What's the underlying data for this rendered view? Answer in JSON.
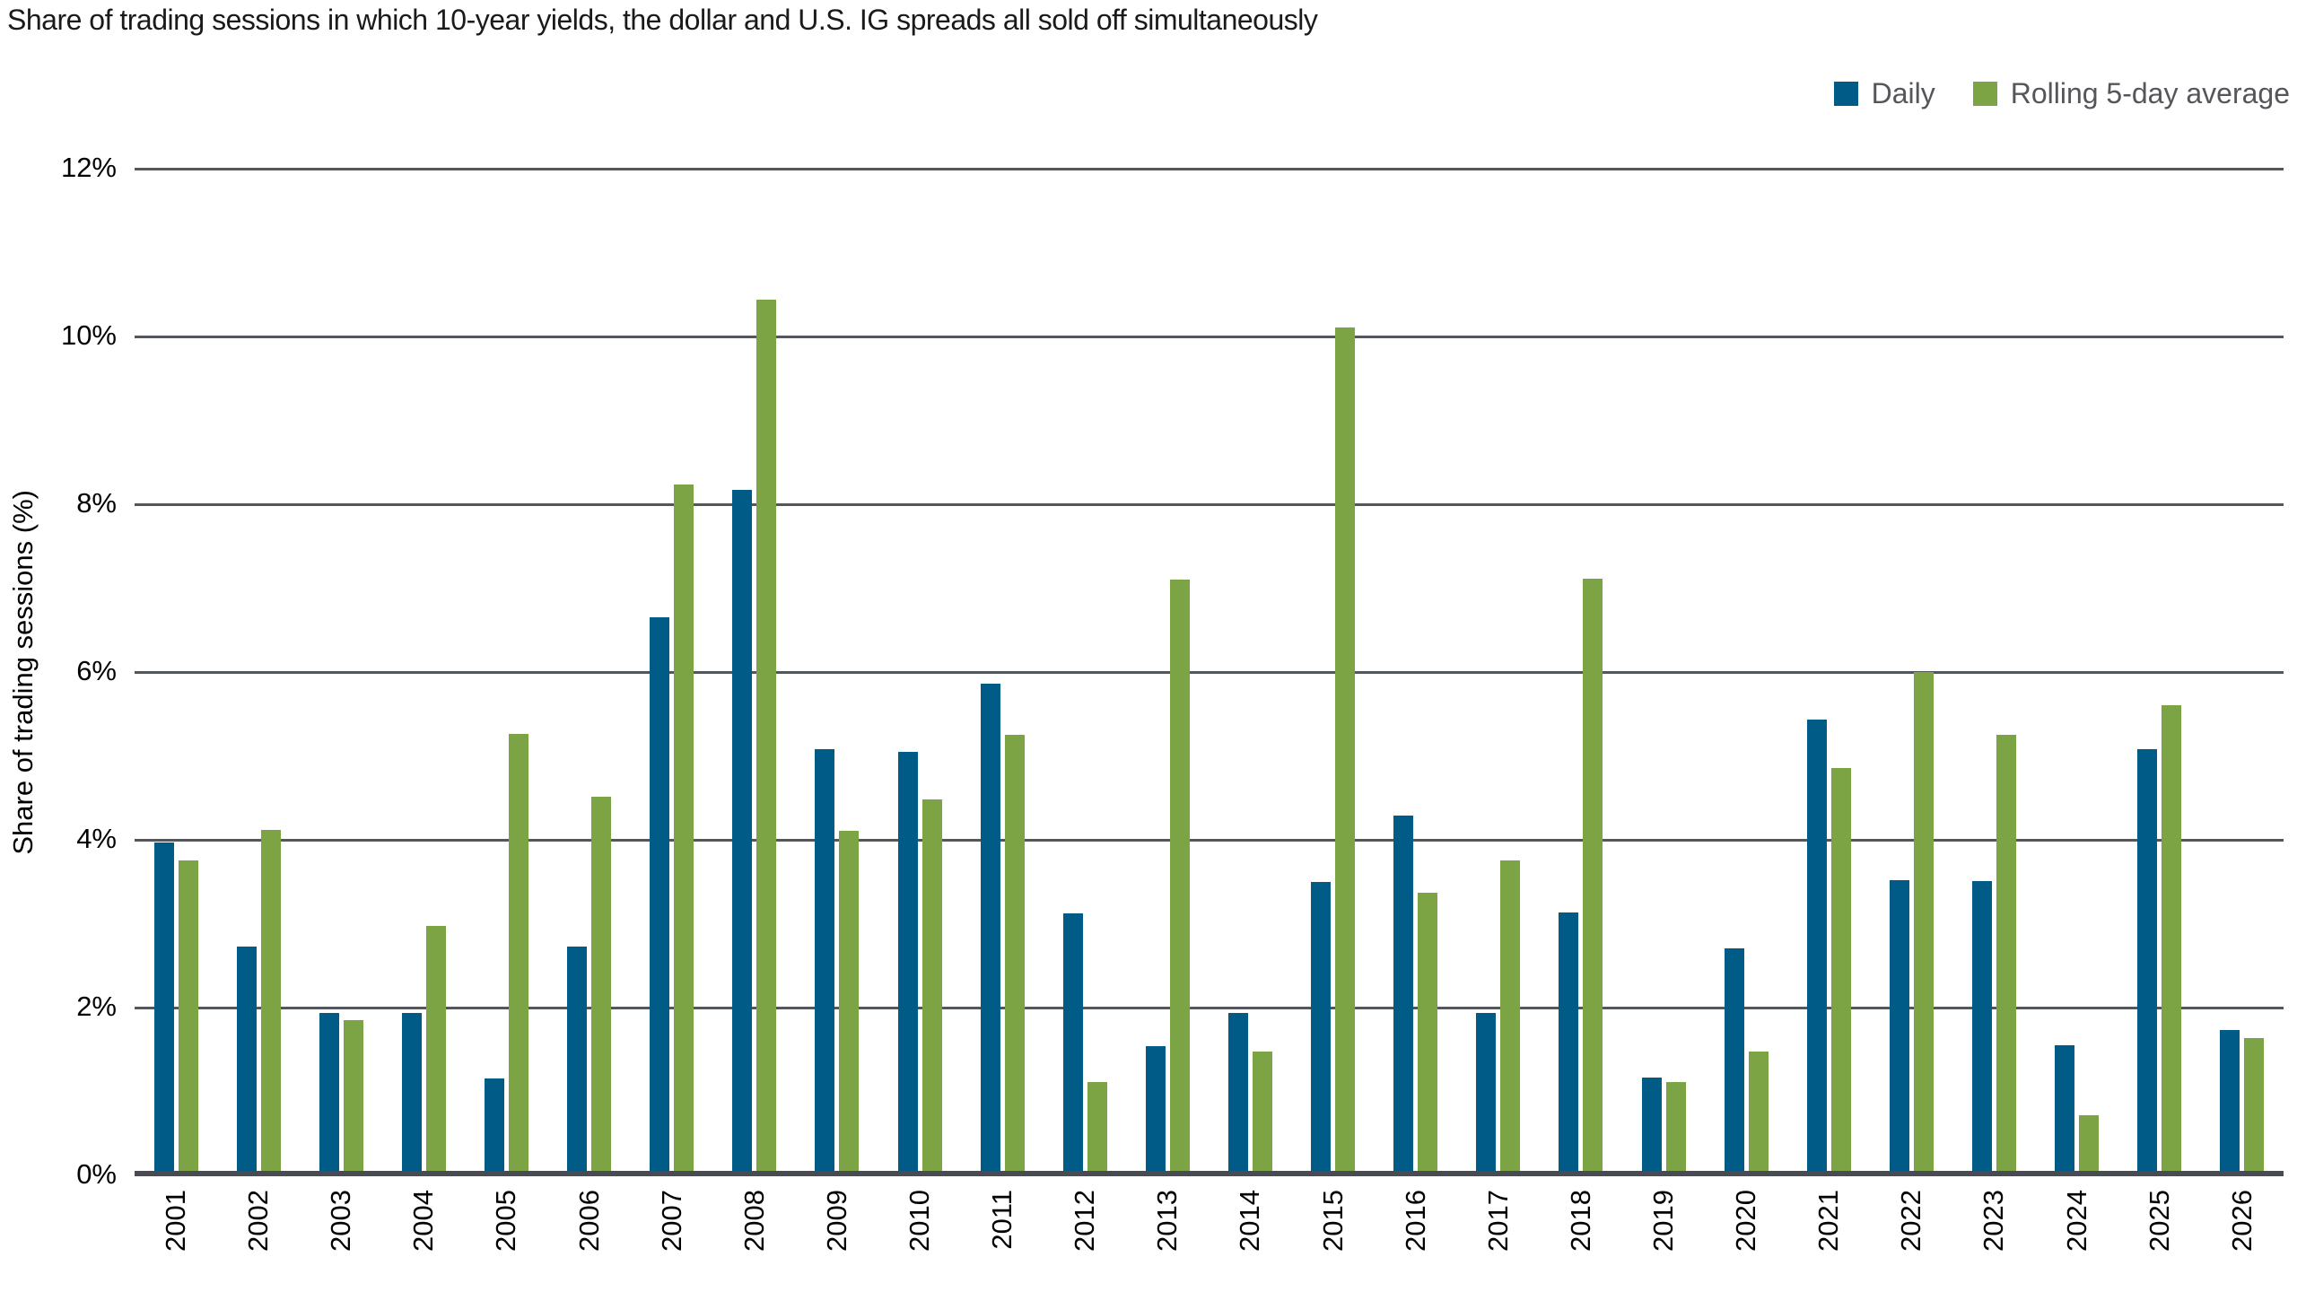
{
  "title": "Share of trading sessions in which 10-year yields, the dollar and U.S. IG spreads all sold off simultaneously",
  "legend": {
    "daily_label": "Daily",
    "rolling_label": "Rolling 5-day average"
  },
  "colors": {
    "daily": "#005b87",
    "rolling": "#7ca344",
    "gridline": "#53565a",
    "legend_text": "#54565b"
  },
  "y_axis": {
    "label": "Share of trading sessions (%)",
    "tick_labels": [
      "0%",
      "2%",
      "4%",
      "6%",
      "8%",
      "10%",
      "12%"
    ],
    "tick_values": [
      0,
      2,
      4,
      6,
      8,
      10,
      12
    ]
  },
  "chart_data": {
    "type": "bar",
    "title": "Share of trading sessions in which 10-year yields, the dollar and U.S. IG spreads all sold off simultaneously",
    "xlabel": "",
    "ylabel": "Share of trading sessions (%)",
    "ylim": [
      0,
      12
    ],
    "grid": true,
    "legend_position": "top-right",
    "categories": [
      "2001",
      "2002",
      "2003",
      "2004",
      "2005",
      "2006",
      "2007",
      "2008",
      "2009",
      "2010",
      "2011",
      "2012",
      "2013",
      "2014",
      "2015",
      "2016",
      "2017",
      "2018",
      "2019",
      "2020",
      "2021",
      "2022",
      "2023",
      "2024",
      "2025",
      "2026"
    ],
    "series": [
      {
        "name": "Daily",
        "color": "#005b87",
        "values": [
          3.97,
          2.73,
          1.94,
          1.94,
          1.16,
          2.73,
          6.65,
          8.17,
          5.08,
          5.05,
          5.86,
          3.12,
          1.54,
          1.94,
          3.5,
          4.29,
          1.94,
          3.13,
          1.17,
          2.71,
          5.43,
          3.52,
          3.51,
          1.55,
          5.08,
          1.73
        ]
      },
      {
        "name": "Rolling 5-day average",
        "color": "#7ca344",
        "values": [
          3.75,
          4.12,
          1.85,
          2.97,
          5.26,
          4.51,
          8.24,
          10.44,
          4.11,
          4.48,
          5.25,
          1.11,
          7.1,
          1.48,
          10.11,
          3.37,
          3.75,
          7.11,
          1.11,
          1.48,
          4.86,
          6.0,
          5.25,
          0.72,
          5.6,
          1.64
        ]
      }
    ]
  }
}
